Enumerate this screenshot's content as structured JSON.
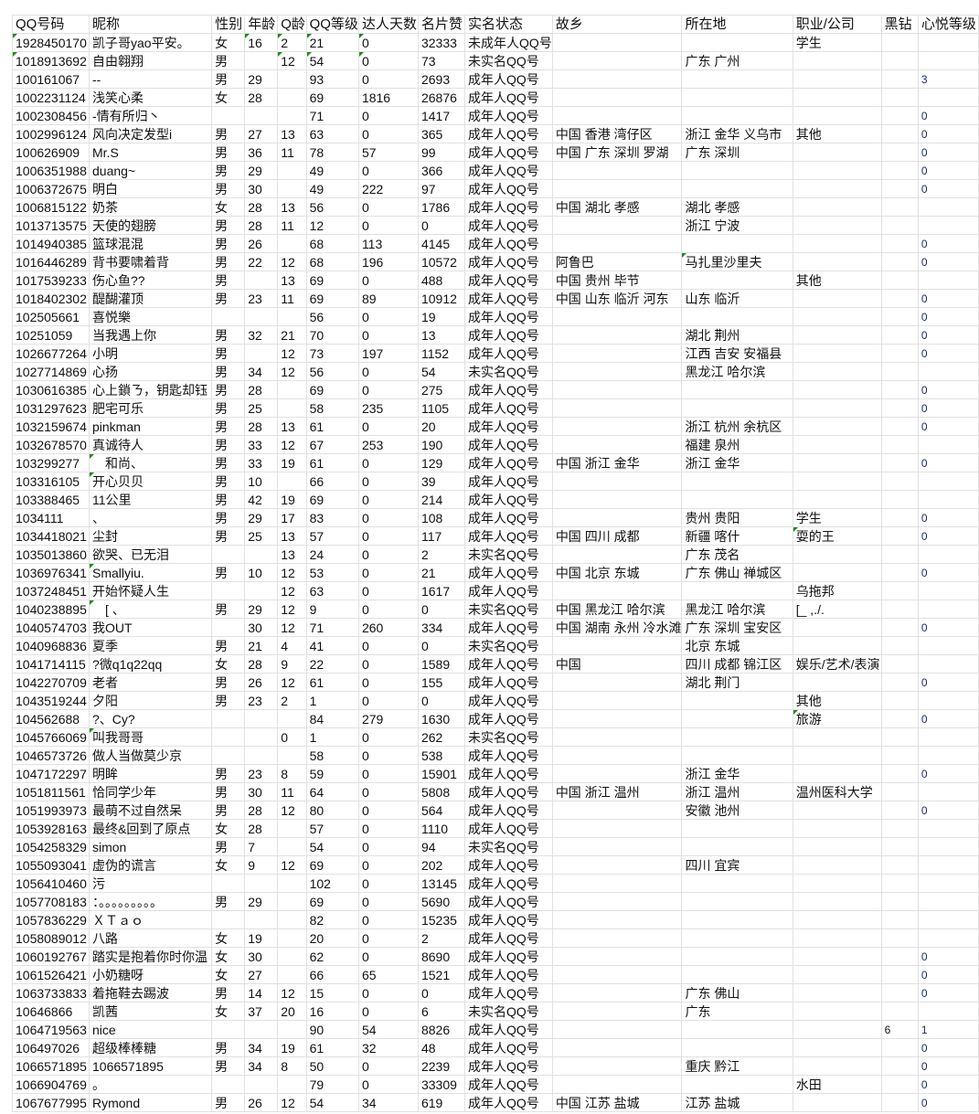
{
  "columns": [
    "QQ号码",
    "昵称",
    "性别",
    "年龄",
    "Q龄",
    "QQ等级",
    "达人天数",
    "名片赞",
    "实名状态",
    "故乡",
    "所在地",
    "职业/公司",
    "黑钻",
    "心悦等级"
  ],
  "rows": [
    [
      "1928450170",
      "凯子哥yao平安。",
      "女",
      "16",
      "2",
      "21",
      "0",
      "32333",
      "未成年人QQ号",
      "",
      "",
      "学生",
      "",
      ""
    ],
    [
      "1018913692",
      "自由翱翔",
      "男",
      "",
      "12",
      "54",
      "0",
      "73",
      "未实名QQ号",
      "",
      "广东 广州",
      "",
      "",
      ""
    ],
    [
      "100161067",
      "--",
      "男",
      "29",
      "",
      "93",
      "0",
      "2693",
      "成年人QQ号",
      "",
      "",
      "",
      "",
      "3"
    ],
    [
      "1002231124",
      "浅笑心柔",
      "女",
      "28",
      "",
      "69",
      "1816",
      "26876",
      "成年人QQ号",
      "",
      "",
      "",
      "",
      ""
    ],
    [
      "1002308456",
      "-情有所归丶",
      "",
      "",
      "",
      "71",
      "0",
      "1417",
      "成年人QQ号",
      "",
      "",
      "",
      "",
      "0"
    ],
    [
      "1002996124",
      "风向决定发型i",
      "男",
      "27",
      "13",
      "63",
      "0",
      "365",
      "成年人QQ号",
      "中国 香港 湾仔区",
      "浙江 金华 义乌市",
      "其他",
      "",
      "0"
    ],
    [
      "100626909",
      "Mr.S",
      "男",
      "36",
      "11",
      "78",
      "57",
      "99",
      "成年人QQ号",
      "中国 广东 深圳 罗湖",
      "广东 深圳",
      "",
      "",
      "0"
    ],
    [
      "1006351988",
      "duang~",
      "男",
      "29",
      "",
      "49",
      "0",
      "366",
      "成年人QQ号",
      "",
      "",
      "",
      "",
      "0"
    ],
    [
      "1006372675",
      "明白",
      "男",
      "30",
      "",
      "49",
      "222",
      "97",
      "成年人QQ号",
      "",
      "",
      "",
      "",
      "0"
    ],
    [
      "1006815122",
      "奶茶",
      "女",
      "28",
      "13",
      "56",
      "0",
      "1786",
      "成年人QQ号",
      "中国 湖北 孝感",
      "湖北 孝感",
      "",
      "",
      ""
    ],
    [
      "1013713575",
      "天使的翅膀",
      "男",
      "28",
      "11",
      "12",
      "0",
      "0",
      "成年人QQ号",
      "",
      "浙江 宁波",
      "",
      "",
      ""
    ],
    [
      "1014940385",
      "篮球混混",
      "男",
      "26",
      "",
      "68",
      "113",
      "4145",
      "成年人QQ号",
      "",
      "",
      "",
      "",
      "0"
    ],
    [
      "1016446289",
      "背书要啸着背",
      "男",
      "22",
      "12",
      "68",
      "196",
      "10572",
      "成年人QQ号",
      "阿鲁巴",
      "马扎里沙里夫",
      "",
      "",
      "0"
    ],
    [
      "1017539233",
      "伤心鱼??",
      "男",
      "",
      "13",
      "69",
      "0",
      "488",
      "成年人QQ号",
      "中国 贵州 毕节",
      "",
      "其他",
      "",
      ""
    ],
    [
      "1018402302",
      "醍醐灌顶",
      "男",
      "23",
      "11",
      "69",
      "89",
      "10912",
      "成年人QQ号",
      "中国 山东 临沂 河东",
      "山东 临沂",
      "",
      "",
      "0"
    ],
    [
      "102505661",
      "喜悦樂",
      "",
      "",
      "",
      "56",
      "0",
      "19",
      "成年人QQ号",
      "",
      "",
      "",
      "",
      "0"
    ],
    [
      "10251059",
      "当我遇上你",
      "男",
      "32",
      "21",
      "70",
      "0",
      "13",
      "成年人QQ号",
      "",
      "湖北 荆州",
      "",
      "",
      "0"
    ],
    [
      "1026677264",
      "小明",
      "男",
      "",
      "12",
      "73",
      "197",
      "1152",
      "成年人QQ号",
      "",
      "江西 吉安 安福县",
      "",
      "",
      "0"
    ],
    [
      "1027714869",
      "心扬",
      "男",
      "34",
      "12",
      "56",
      "0",
      "54",
      "未实名QQ号",
      "",
      "黑龙江 哈尔滨",
      "",
      "",
      ""
    ],
    [
      "1030616385",
      "心上鎖ㄋ，钥匙却钰",
      "男",
      "28",
      "",
      "69",
      "0",
      "275",
      "成年人QQ号",
      "",
      "",
      "",
      "",
      "0"
    ],
    [
      "1031297623",
      "肥宅可乐",
      "男",
      "25",
      "",
      "58",
      "235",
      "1105",
      "成年人QQ号",
      "",
      "",
      "",
      "",
      "0"
    ],
    [
      "1032159674",
      "pinkman",
      "男",
      "28",
      "13",
      "61",
      "0",
      "20",
      "成年人QQ号",
      "",
      "浙江 杭州 余杭区",
      "",
      "",
      "0"
    ],
    [
      "1032678570",
      "真诚待人",
      "男",
      "33",
      "12",
      "67",
      "253",
      "190",
      "成年人QQ号",
      "",
      "福建 泉州",
      "",
      "",
      ""
    ],
    [
      "103299277",
      "　和尚、",
      "男",
      "33",
      "19",
      "61",
      "0",
      "129",
      "成年人QQ号",
      "中国 浙江 金华",
      "浙江 金华",
      "",
      "",
      "0"
    ],
    [
      "103316105",
      "开心贝贝",
      "男",
      "10",
      "",
      "66",
      "0",
      "39",
      "成年人QQ号",
      "",
      "",
      "",
      "",
      ""
    ],
    [
      "103388465",
      "11公里",
      "男",
      "42",
      "19",
      "69",
      "0",
      "214",
      "成年人QQ号",
      "",
      "",
      "",
      "",
      ""
    ],
    [
      "1034111",
      "、",
      "男",
      "29",
      "17",
      "83",
      "0",
      "108",
      "成年人QQ号",
      "",
      "贵州 贵阳",
      "学生",
      "",
      "0"
    ],
    [
      "1034418021",
      "尘封",
      "男",
      "25",
      "13",
      "57",
      "0",
      "117",
      "成年人QQ号",
      "中国 四川 成都",
      "新疆 喀什",
      "耍的王",
      "",
      "0"
    ],
    [
      "1035013860",
      "欲哭、已无泪",
      "",
      "",
      "13",
      "24",
      "0",
      "2",
      "未实名QQ号",
      "",
      "广东 茂名",
      "",
      "",
      ""
    ],
    [
      "1036976341",
      "  Smallyiu.",
      "男",
      "10",
      "12",
      "53",
      "0",
      "21",
      "成年人QQ号",
      "中国 北京 东城",
      "广东 佛山 禅城区",
      "",
      "",
      "0"
    ],
    [
      "1037248451",
      "开始怀疑人生",
      "",
      "",
      "12",
      "63",
      "0",
      "1617",
      "成年人QQ号",
      "",
      "",
      "乌拖邦",
      "",
      ""
    ],
    [
      "1040238895",
      "　[ 、",
      "男",
      "29",
      "12",
      "9",
      "0",
      "0",
      "未实名QQ号",
      "中国 黑龙江 哈尔滨",
      "黑龙江 哈尔滨",
      "[_ ,./.",
      "",
      ""
    ],
    [
      "1040574703",
      "我OUT",
      "",
      "30",
      "12",
      "71",
      "260",
      "334",
      "成年人QQ号",
      "中国 湖南 永州 冷水滩",
      "广东 深圳 宝安区",
      "",
      "",
      "0"
    ],
    [
      "1040968836",
      "夏季",
      "男",
      "21",
      "4",
      "41",
      "0",
      "0",
      "未实名QQ号",
      "",
      "北京 东城",
      "",
      "",
      ""
    ],
    [
      "1041714115",
      "?微q1q22qq",
      "女",
      "28",
      "9",
      "22",
      "0",
      "1589",
      "成年人QQ号",
      "中国",
      "四川 成都 锦江区",
      "娱乐/艺术/表演",
      "",
      ""
    ],
    [
      "1042270709",
      "老者",
      "男",
      "26",
      "12",
      "61",
      "0",
      "155",
      "成年人QQ号",
      "",
      "湖北 荆门",
      "",
      "",
      "0"
    ],
    [
      "1043519244",
      "夕阳",
      "男",
      "23",
      "2",
      "1",
      "0",
      "0",
      "成年人QQ号",
      "",
      "",
      "其他",
      "",
      ""
    ],
    [
      "104562688",
      "?、Cy?",
      "",
      "",
      "",
      "84",
      "279",
      "1630",
      "成年人QQ号",
      "",
      "",
      "旅游",
      "",
      "0"
    ],
    [
      "1045766069",
      "叫我哥哥",
      "",
      "",
      "0",
      "1",
      "0",
      "262",
      "未实名QQ号",
      "",
      "",
      "",
      "",
      ""
    ],
    [
      "1046573726",
      "做人当做莫少京",
      "",
      "",
      "",
      "58",
      "0",
      "538",
      "成年人QQ号",
      "",
      "",
      "",
      "",
      ""
    ],
    [
      "1047172297",
      "明眸",
      "男",
      "23",
      "8",
      "59",
      "0",
      "15901",
      "成年人QQ号",
      "",
      "浙江 金华",
      "",
      "",
      "0"
    ],
    [
      "1051811561",
      "恰同学少年",
      "男",
      "30",
      "11",
      "64",
      "0",
      "5808",
      "成年人QQ号",
      "中国 浙江 温州",
      "浙江 温州",
      "温州医科大学",
      "",
      ""
    ],
    [
      "1051993973",
      "最萌不过自然呆",
      "男",
      "28",
      "12",
      "80",
      "0",
      "564",
      "成年人QQ号",
      "",
      "安徽 池州",
      "",
      "",
      "0"
    ],
    [
      "1053928163",
      "最终&回到了原点",
      "女",
      "28",
      "",
      "57",
      "0",
      "1110",
      "成年人QQ号",
      "",
      "",
      "",
      "",
      ""
    ],
    [
      "1054258329",
      "simon",
      "男",
      "7",
      "",
      "54",
      "0",
      "94",
      "未实名QQ号",
      "",
      "",
      "",
      "",
      ""
    ],
    [
      "1055093041",
      "虚伪的谎言",
      "女",
      "9",
      "12",
      "69",
      "0",
      "202",
      "成年人QQ号",
      "",
      "四川 宜宾",
      "",
      "",
      ""
    ],
    [
      "1056410460",
      "污",
      "",
      "",
      "",
      "102",
      "0",
      "13145",
      "成年人QQ号",
      "",
      "",
      "",
      "",
      ""
    ],
    [
      "1057708183",
      "：。。。。。。。。。",
      "男",
      "29",
      "",
      "69",
      "0",
      "5690",
      "成年人QQ号",
      "",
      "",
      "",
      "",
      ""
    ],
    [
      "1057836229",
      "ＸＴａｏ",
      "",
      "",
      "",
      "82",
      "0",
      "15235",
      "成年人QQ号",
      "",
      "",
      "",
      "",
      ""
    ],
    [
      "1058089012",
      "八路",
      "女",
      "19",
      "",
      "20",
      "0",
      "2",
      "成年人QQ号",
      "",
      "",
      "",
      "",
      ""
    ],
    [
      "1060192767",
      "踏实是抱着你时你温",
      "女",
      "30",
      "",
      "62",
      "0",
      "8690",
      "成年人QQ号",
      "",
      "",
      "",
      "",
      "0"
    ],
    [
      "1061526421",
      "小奶糖呀",
      "女",
      "27",
      "",
      "66",
      "65",
      "1521",
      "成年人QQ号",
      "",
      "",
      "",
      "",
      "0"
    ],
    [
      "1063733833",
      "着拖鞋去踢波",
      "男",
      "14",
      "12",
      "15",
      "0",
      "0",
      "成年人QQ号",
      "",
      "广东 佛山",
      "",
      "",
      "0"
    ],
    [
      "10646866",
      "凯茜",
      "女",
      "37",
      "20",
      "16",
      "0",
      "6",
      "未实名QQ号",
      "",
      "广东",
      "",
      "",
      ""
    ],
    [
      "1064719563",
      "nice",
      "",
      "",
      "",
      "90",
      "54",
      "8826",
      "成年人QQ号",
      "",
      "",
      "",
      "6",
      "1"
    ],
    [
      "106497026",
      "超级棒棒糖",
      "男",
      "34",
      "19",
      "61",
      "32",
      "48",
      "成年人QQ号",
      "",
      "",
      "",
      "",
      "0"
    ],
    [
      "1066571895",
      "1066571895",
      "男",
      "34",
      "8",
      "50",
      "0",
      "2239",
      "成年人QQ号",
      "",
      "重庆 黔江",
      "",
      "",
      "0"
    ],
    [
      "1066904769",
      "。",
      "",
      "",
      "",
      "79",
      "0",
      "33309",
      "成年人QQ号",
      "",
      "",
      "水田",
      "",
      "0"
    ],
    [
      "1067677995",
      "Rymond",
      "男",
      "26",
      "12",
      "54",
      "34",
      "619",
      "成年人QQ号",
      "中国 江苏 盐城",
      "江苏 盐城",
      "",
      "",
      "0"
    ]
  ],
  "text_marked_cells": [
    [
      0,
      0
    ],
    [
      0,
      3
    ],
    [
      0,
      4
    ],
    [
      0,
      5
    ],
    [
      0,
      6
    ],
    [
      1,
      0
    ],
    [
      1,
      4
    ],
    [
      1,
      5
    ],
    [
      1,
      6
    ],
    [
      12,
      10
    ],
    [
      23,
      1
    ],
    [
      24,
      1
    ],
    [
      27,
      11
    ],
    [
      29,
      1
    ],
    [
      31,
      1
    ],
    [
      37,
      11
    ],
    [
      38,
      1
    ]
  ],
  "colors": {
    "grid": "#e1e1e1",
    "text_flag": "#1e8a1e",
    "xinyue_text": "#1c2a6e"
  }
}
